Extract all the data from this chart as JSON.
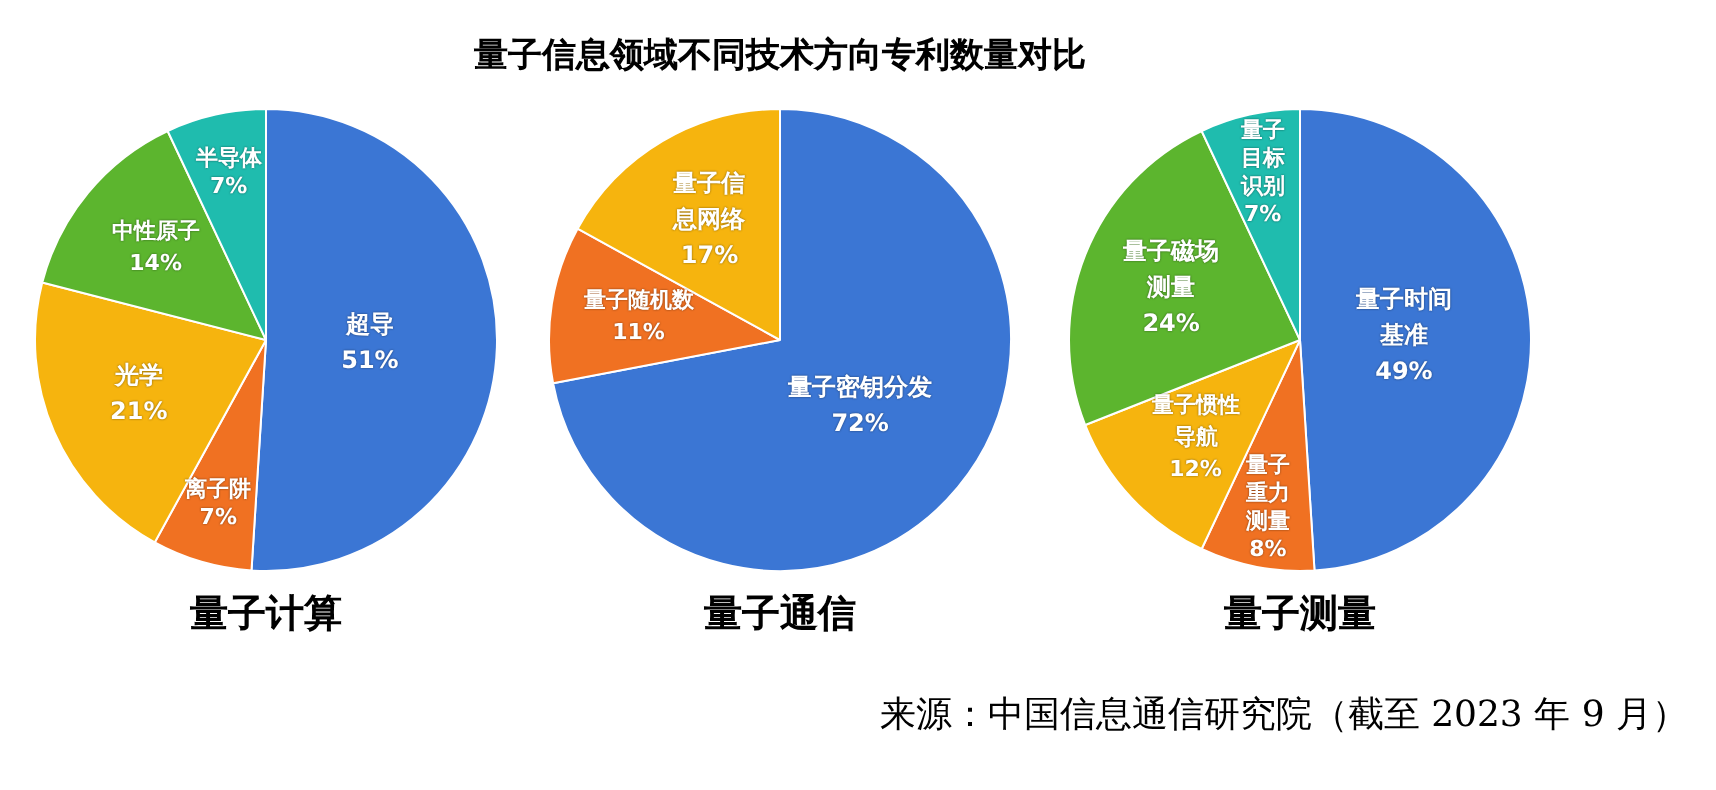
{
  "chart_data": [
    {
      "type": "pie",
      "title": "量子计算",
      "annotations": [
        "量子信息领域不同技术方向专利数量对比"
      ],
      "categories": [
        "超导",
        "离子阱",
        "光学",
        "中性原子",
        "半导体"
      ],
      "values": [
        51,
        7,
        21,
        14,
        7
      ],
      "value_labels": [
        "51%",
        "7%",
        "21%",
        "14%",
        "7%"
      ],
      "colors": [
        "#3b76d4",
        "#f07122",
        "#f6b40e",
        "#5cb52e",
        "#1fbcae"
      ]
    },
    {
      "type": "pie",
      "title": "量子通信",
      "categories": [
        "量子密钥分发",
        "量子随机数",
        "量子信息网络"
      ],
      "values": [
        72,
        11,
        17
      ],
      "value_labels": [
        "72%",
        "11%",
        "17%"
      ],
      "colors": [
        "#3b76d4",
        "#f07122",
        "#f6b40e"
      ]
    },
    {
      "type": "pie",
      "title": "量子测量",
      "annotations": [
        "来源：中国信息通信研究院（截至 2023 年 9 月）"
      ],
      "categories": [
        "量子时间基准",
        "量子重力测量",
        "量子惯性导航",
        "量子磁场测量",
        "量子目标识别"
      ],
      "values": [
        49,
        8,
        12,
        24,
        7
      ],
      "value_labels": [
        "49%",
        "8%",
        "12%",
        "24%",
        "7%"
      ],
      "colors": [
        "#3b76d4",
        "#f07122",
        "#f6b40e",
        "#5cb52e",
        "#1fbcae"
      ]
    }
  ]
}
